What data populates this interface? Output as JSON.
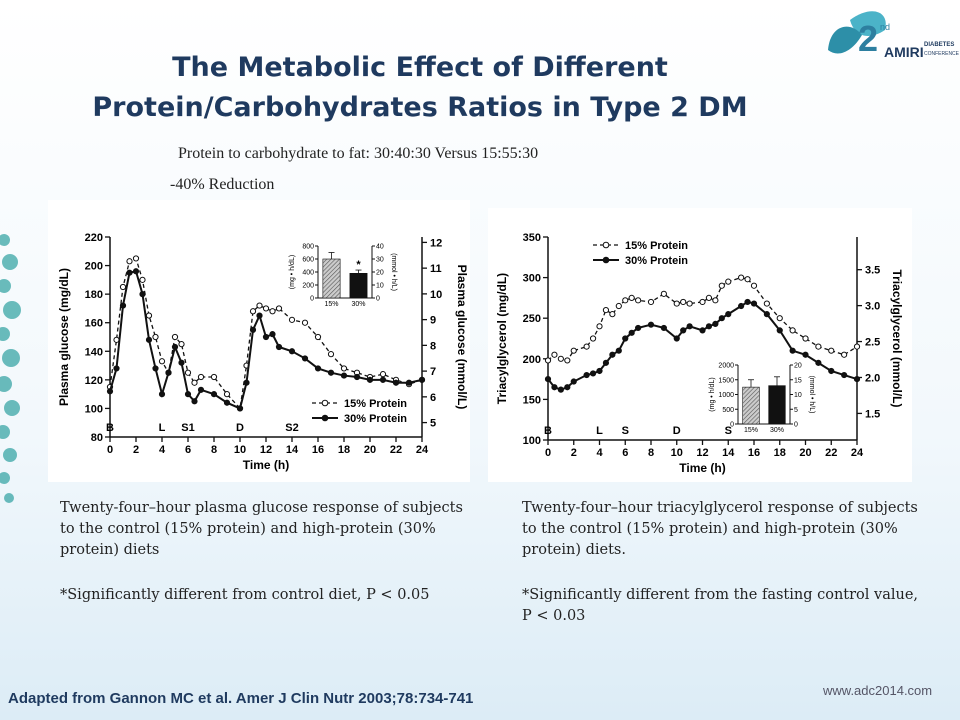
{
  "slide": {
    "title_line1": "The Metabolic Effect of Different",
    "title_line2": "Protein/Carbohydrates Ratios in Type 2 DM",
    "subtitle": "Protein to carbohydrate to fat:  30:40:30 Versus 15:55:30",
    "reduction": "-40% Reduction",
    "caption_left": "Twenty-four–hour plasma glucose response of subjects to the control (15% protein) and high-protein (30% protein) diets",
    "note_left": "*Significantly different from control diet, P < 0.05",
    "caption_right": "Twenty-four–hour triacylglycerol response of subjects to the control (15% protein) and high-protein (30% protein) diets.",
    "note_right": "*Significantly different from the fasting control value, P < 0.03",
    "source": "Adapted from Gannon MC et al. Amer J Clin Nutr 2003;78:734-741",
    "logo_number": "2",
    "logo_suffix": "nd",
    "logo_name": "AMIRI",
    "logo_tag1": "DIABETES",
    "logo_tag2": "CONFERENCE 2014",
    "url": "www.adc2014.com"
  },
  "chart_data": [
    {
      "type": "line",
      "xlabel": "Time (h)",
      "ylabel": "Plasma glucose (mg/dL)",
      "y2label": "Plasma glucose (mmol/L)",
      "x": [
        0,
        0.5,
        1,
        1.5,
        2,
        2.5,
        3,
        3.5,
        4,
        4.5,
        5,
        5.5,
        6,
        6.5,
        7,
        8,
        9,
        10,
        10.5,
        11,
        11.5,
        12,
        12.5,
        13,
        14,
        15,
        16,
        17,
        18,
        19,
        20,
        21,
        22,
        23,
        24
      ],
      "series": [
        {
          "name": "15% Protein",
          "color": "#111111",
          "dash": true,
          "marker": "open",
          "values": [
            115,
            148,
            185,
            203,
            205,
            190,
            165,
            150,
            133,
            125,
            150,
            145,
            125,
            118,
            122,
            122,
            110,
            100,
            130,
            168,
            172,
            170,
            168,
            170,
            162,
            160,
            150,
            138,
            128,
            125,
            122,
            124,
            120,
            117,
            120
          ]
        },
        {
          "name": "30% Protein",
          "color": "#111111",
          "dash": false,
          "marker": "filled",
          "values": [
            112,
            128,
            172,
            195,
            196,
            180,
            148,
            128,
            110,
            125,
            143,
            132,
            110,
            105,
            113,
            110,
            104,
            100,
            118,
            155,
            165,
            150,
            152,
            143,
            140,
            135,
            128,
            125,
            123,
            122,
            120,
            120,
            118,
            118,
            120
          ]
        }
      ],
      "xlim": [
        0,
        24
      ],
      "xticks": [
        0,
        2,
        4,
        6,
        8,
        10,
        12,
        14,
        16,
        18,
        20,
        22,
        24
      ],
      "ylim": [
        80,
        220
      ],
      "yticks": [
        80,
        100,
        120,
        140,
        160,
        180,
        200,
        220
      ],
      "y2lim": [
        4.44,
        12.21
      ],
      "y2ticks": [
        5,
        6,
        7,
        8,
        9,
        10,
        11,
        12
      ],
      "legend": "lower right",
      "annotations": [
        {
          "text": "B",
          "x": 0
        },
        {
          "text": "L",
          "x": 4
        },
        {
          "text": "S1",
          "x": 6
        },
        {
          "text": "D",
          "x": 10
        },
        {
          "text": "S2",
          "x": 14
        }
      ],
      "inset": {
        "categories": [
          "15%",
          "30%"
        ],
        "values": [
          600,
          380
        ],
        "errors": [
          100,
          50
        ],
        "patterns": [
          "hatch",
          "solid"
        ],
        "ylim": [
          0,
          800
        ],
        "yticks": [
          0,
          200,
          400,
          600,
          800
        ],
        "ylabel": "(mg • h/dL)",
        "y2lim": [
          0,
          40
        ],
        "y2ticks": [
          0,
          10,
          20,
          30,
          40
        ],
        "y2label": "(mmol • h/L)",
        "annotation": "*"
      }
    },
    {
      "type": "line",
      "xlabel": "Time (h)",
      "ylabel": "Triacylglycerol (mg/dL)",
      "y2label": "Triacylglycerol (mmol/L)",
      "x": [
        0,
        0.5,
        1,
        1.5,
        2,
        3,
        3.5,
        4,
        4.5,
        5,
        5.5,
        6,
        6.5,
        7,
        8,
        9,
        10,
        10.5,
        11,
        12,
        12.5,
        13,
        13.5,
        14,
        15,
        15.5,
        16,
        17,
        18,
        19,
        20,
        21,
        22,
        23,
        24
      ],
      "series": [
        {
          "name": "15% Protein",
          "color": "#111111",
          "dash": true,
          "marker": "open",
          "values": [
            198,
            205,
            200,
            198,
            210,
            215,
            225,
            240,
            260,
            255,
            265,
            272,
            275,
            272,
            270,
            280,
            268,
            270,
            268,
            270,
            275,
            272,
            290,
            295,
            300,
            298,
            290,
            268,
            250,
            235,
            225,
            215,
            210,
            205,
            215
          ]
        },
        {
          "name": "30% Protein",
          "color": "#111111",
          "dash": false,
          "marker": "filled",
          "values": [
            175,
            165,
            162,
            165,
            172,
            180,
            182,
            185,
            195,
            205,
            210,
            225,
            232,
            238,
            242,
            238,
            225,
            235,
            240,
            235,
            240,
            243,
            250,
            255,
            265,
            270,
            268,
            255,
            235,
            210,
            205,
            195,
            185,
            180,
            175
          ]
        }
      ],
      "xlim": [
        0,
        24
      ],
      "xticks": [
        0,
        2,
        4,
        6,
        8,
        10,
        12,
        14,
        16,
        18,
        20,
        22,
        24
      ],
      "ylim": [
        100,
        350
      ],
      "yticks": [
        100,
        150,
        200,
        250,
        300,
        350
      ],
      "y2lim": [
        1.13,
        3.955
      ],
      "y2ticks": [
        1.5,
        {
          "value": 2,
          "label": "2.0"
        },
        2.5,
        {
          "value": 3,
          "label": "3.0"
        },
        3.5
      ],
      "legend": "upper left",
      "annotations": [
        {
          "text": "B",
          "x": 0
        },
        {
          "text": "L",
          "x": 4
        },
        {
          "text": "S",
          "x": 6
        },
        {
          "text": "D",
          "x": 10
        },
        {
          "text": "S",
          "x": 14
        }
      ],
      "inset": {
        "categories": [
          "15%",
          "30%"
        ],
        "values": [
          1250,
          1300
        ],
        "errors": [
          250,
          300
        ],
        "patterns": [
          "hatch",
          "solid"
        ],
        "ylim": [
          0,
          2000
        ],
        "yticks": [
          0,
          500,
          1000,
          1500,
          2000
        ],
        "ylabel": "(mg • h/dL)",
        "y2lim": [
          0,
          20
        ],
        "y2ticks": [
          0,
          5,
          10,
          15,
          20
        ],
        "y2label": "(mmol • h/L)"
      }
    }
  ]
}
